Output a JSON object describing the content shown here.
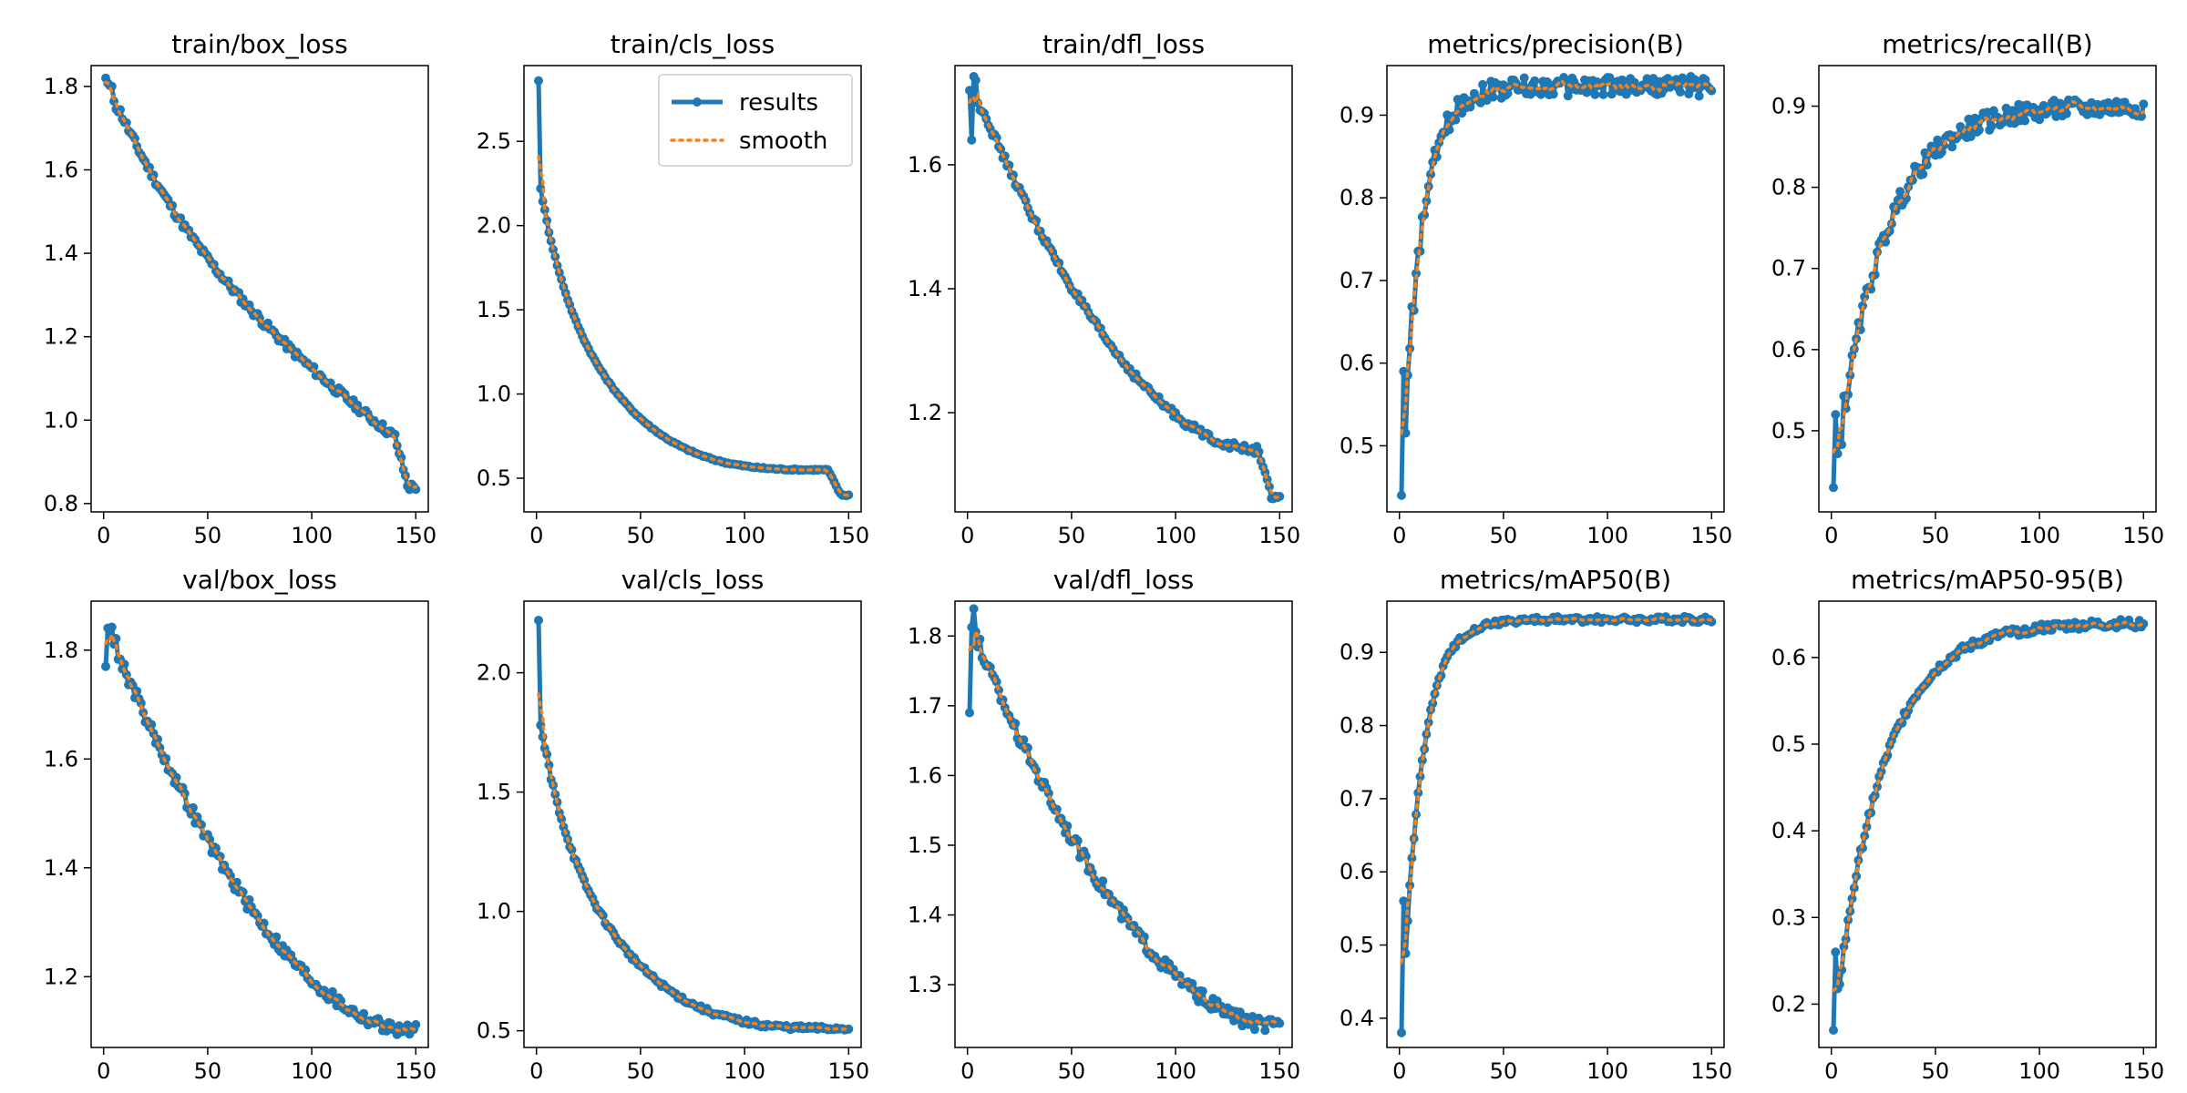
{
  "colors": {
    "results": "#1f77b4",
    "smooth": "#ff7f0e"
  },
  "legend": {
    "results_label": "results",
    "smooth_label": "smooth",
    "placement": "upper-right of train/cls_loss"
  },
  "chart_data": [
    {
      "type": "line",
      "title": "train/box_loss",
      "x_range": [
        0,
        150
      ],
      "ylim": [
        0.78,
        1.85
      ],
      "xticks": [
        0,
        50,
        100,
        150
      ],
      "yticks": [
        0.8,
        1.0,
        1.2,
        1.4,
        1.6,
        1.8
      ],
      "ytick_decimals": 1,
      "curve": {
        "start": 1.82,
        "end": 0.96,
        "end_x": 140,
        "decay": "linear-ish",
        "noise": 0.01,
        "drop_to": 0.84
      },
      "series": [
        {
          "name": "results"
        },
        {
          "name": "smooth"
        }
      ]
    },
    {
      "type": "line",
      "title": "train/cls_loss",
      "x_range": [
        0,
        150
      ],
      "ylim": [
        0.3,
        2.95
      ],
      "xticks": [
        0,
        50,
        100,
        150
      ],
      "yticks": [
        0.5,
        1.0,
        1.5,
        2.0,
        2.5
      ],
      "ytick_decimals": 1,
      "curve": {
        "start": 2.86,
        "second": 2.22,
        "end": 0.55,
        "end_x": 140,
        "decay": "fast",
        "noise": 0.005,
        "drop_to": 0.4
      },
      "series": [
        {
          "name": "results"
        },
        {
          "name": "smooth"
        }
      ]
    },
    {
      "type": "line",
      "title": "train/dfl_loss",
      "x_range": [
        0,
        150
      ],
      "ylim": [
        1.04,
        1.76
      ],
      "xticks": [
        0,
        50,
        100,
        150
      ],
      "yticks": [
        1.2,
        1.4,
        1.6
      ],
      "ytick_decimals": 1,
      "curve": {
        "start": 1.72,
        "second": 1.64,
        "peak": 1.74,
        "end": 1.14,
        "end_x": 140,
        "decay": "moderate",
        "noise": 0.006,
        "drop_to": 1.06
      },
      "series": [
        {
          "name": "results"
        },
        {
          "name": "smooth"
        }
      ]
    },
    {
      "type": "line",
      "title": "metrics/precision(B)",
      "x_range": [
        0,
        150
      ],
      "ylim": [
        0.42,
        0.96
      ],
      "xticks": [
        0,
        50,
        100,
        150
      ],
      "yticks": [
        0.5,
        0.6,
        0.7,
        0.8,
        0.9
      ],
      "ytick_decimals": 1,
      "curve": {
        "start": 0.44,
        "second": 0.59,
        "end": 0.935,
        "decay": "rise-fast",
        "noise": 0.012
      },
      "series": [
        {
          "name": "results"
        },
        {
          "name": "smooth"
        }
      ]
    },
    {
      "type": "line",
      "title": "metrics/recall(B)",
      "x_range": [
        0,
        150
      ],
      "ylim": [
        0.4,
        0.95
      ],
      "xticks": [
        0,
        50,
        100,
        150
      ],
      "yticks": [
        0.5,
        0.6,
        0.7,
        0.8,
        0.9
      ],
      "ytick_decimals": 1,
      "curve": {
        "start": 0.43,
        "second": 0.52,
        "end": 0.9,
        "decay": "rise-moderate",
        "noise": 0.012
      },
      "series": [
        {
          "name": "results"
        },
        {
          "name": "smooth"
        }
      ]
    },
    {
      "type": "line",
      "title": "val/box_loss",
      "x_range": [
        0,
        150
      ],
      "ylim": [
        1.07,
        1.89
      ],
      "xticks": [
        0,
        50,
        100,
        150
      ],
      "yticks": [
        1.2,
        1.4,
        1.6,
        1.8
      ],
      "ytick_decimals": 1,
      "curve": {
        "start": 1.77,
        "peak": 1.85,
        "end": 1.1,
        "decay": "moderate",
        "noise": 0.012
      },
      "series": [
        {
          "name": "results"
        },
        {
          "name": "smooth"
        }
      ]
    },
    {
      "type": "line",
      "title": "val/cls_loss",
      "x_range": [
        0,
        150
      ],
      "ylim": [
        0.43,
        2.3
      ],
      "xticks": [
        0,
        50,
        100,
        150
      ],
      "yticks": [
        0.5,
        1.0,
        1.5,
        2.0
      ],
      "ytick_decimals": 1,
      "curve": {
        "start": 2.22,
        "second": 1.78,
        "end": 0.51,
        "decay": "fast",
        "noise": 0.01
      },
      "series": [
        {
          "name": "results"
        },
        {
          "name": "smooth"
        }
      ]
    },
    {
      "type": "line",
      "title": "val/dfl_loss",
      "x_range": [
        0,
        150
      ],
      "ylim": [
        1.21,
        1.85
      ],
      "xticks": [
        0,
        50,
        100,
        150
      ],
      "yticks": [
        1.3,
        1.4,
        1.5,
        1.6,
        1.7,
        1.8
      ],
      "ytick_decimals": 1,
      "curve": {
        "start": 1.69,
        "peak": 1.82,
        "end": 1.24,
        "decay": "moderate",
        "noise": 0.01
      },
      "series": [
        {
          "name": "results"
        },
        {
          "name": "smooth"
        }
      ]
    },
    {
      "type": "line",
      "title": "metrics/mAP50(B)",
      "x_range": [
        0,
        150
      ],
      "ylim": [
        0.36,
        0.97
      ],
      "xticks": [
        0,
        50,
        100,
        150
      ],
      "yticks": [
        0.4,
        0.5,
        0.6,
        0.7,
        0.8,
        0.9
      ],
      "ytick_decimals": 1,
      "curve": {
        "start": 0.38,
        "second": 0.56,
        "end": 0.945,
        "decay": "rise-fast",
        "noise": 0.004
      },
      "series": [
        {
          "name": "results"
        },
        {
          "name": "smooth"
        }
      ]
    },
    {
      "type": "line",
      "title": "metrics/mAP50-95(B)",
      "x_range": [
        0,
        150
      ],
      "ylim": [
        0.15,
        0.665
      ],
      "xticks": [
        0,
        50,
        100,
        150
      ],
      "yticks": [
        0.2,
        0.3,
        0.4,
        0.5,
        0.6
      ],
      "ytick_decimals": 1,
      "curve": {
        "start": 0.17,
        "second": 0.26,
        "end": 0.64,
        "decay": "rise-moderate",
        "noise": 0.005
      },
      "series": [
        {
          "name": "results"
        },
        {
          "name": "smooth"
        }
      ]
    }
  ]
}
